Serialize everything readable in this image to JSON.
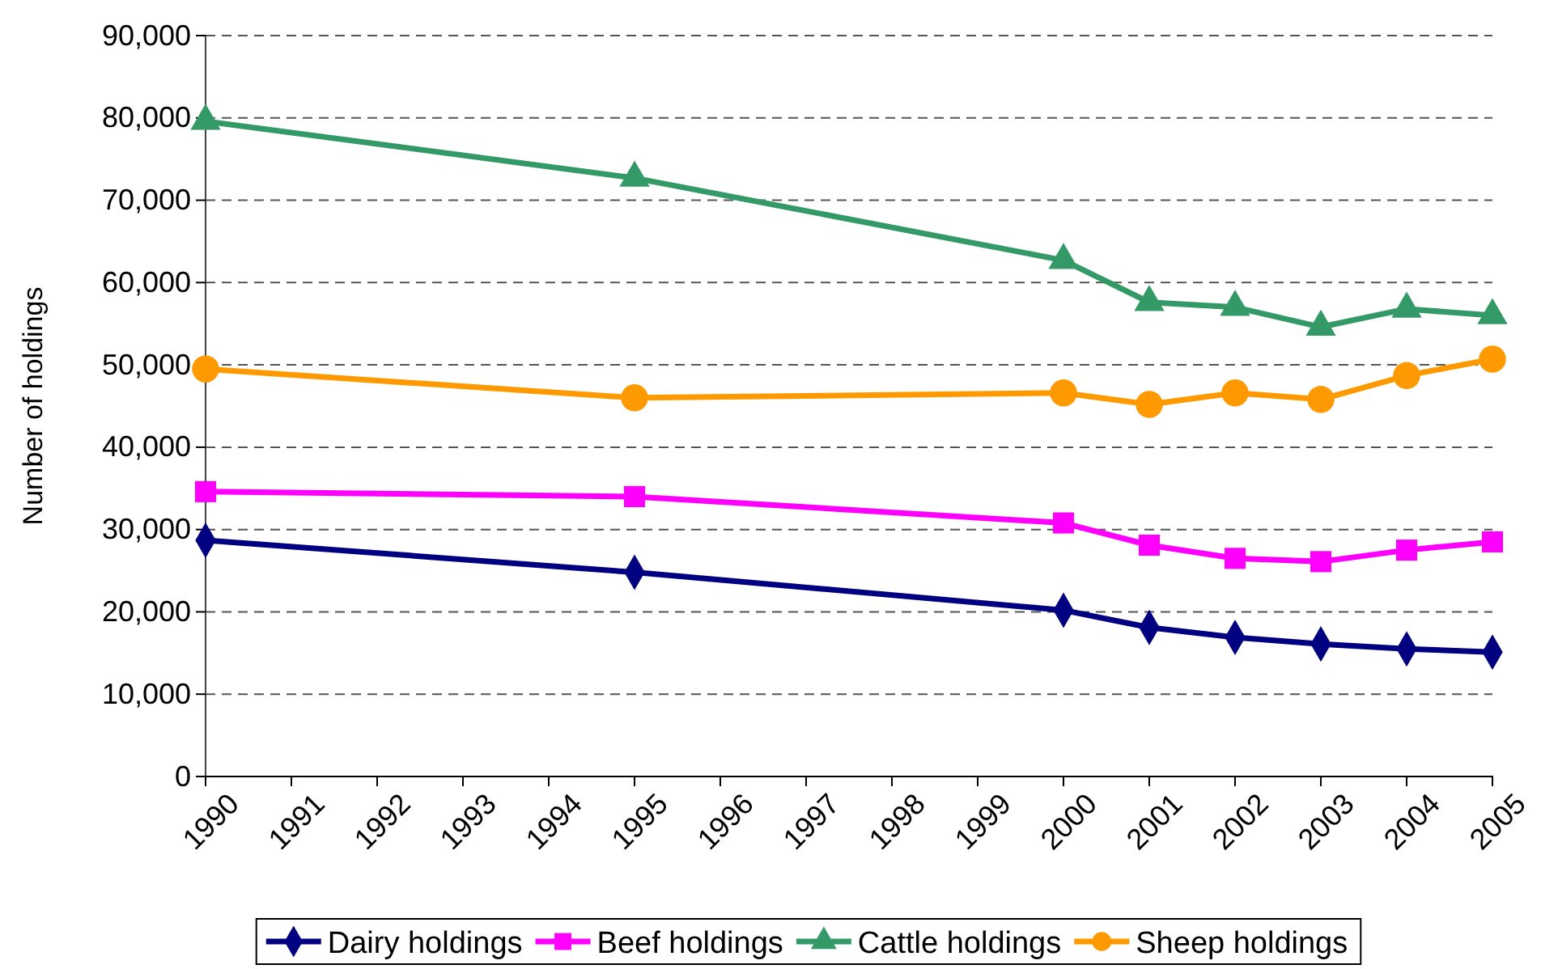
{
  "chart_data": {
    "type": "line",
    "ylabel": "Number of holdings",
    "x": [
      1990,
      1995,
      2000,
      2001,
      2002,
      2003,
      2004,
      2005
    ],
    "xlim": [
      1990,
      2005
    ],
    "xticks": [
      1990,
      1991,
      1992,
      1993,
      1994,
      1995,
      1996,
      1997,
      1998,
      1999,
      2000,
      2001,
      2002,
      2003,
      2004,
      2005
    ],
    "ylim": [
      0,
      90000
    ],
    "yticks": [
      {
        "value": 0,
        "label": "0"
      },
      {
        "value": 10000,
        "label": "10,000"
      },
      {
        "value": 20000,
        "label": "20,000"
      },
      {
        "value": 30000,
        "label": "30,000"
      },
      {
        "value": 40000,
        "label": "40,000"
      },
      {
        "value": 50000,
        "label": "50,000"
      },
      {
        "value": 60000,
        "label": "60,000"
      },
      {
        "value": 70000,
        "label": "70,000"
      },
      {
        "value": 80000,
        "label": "80,000"
      },
      {
        "value": 90000,
        "label": "90,000"
      }
    ],
    "grid": "y",
    "legend": "bottom",
    "line_style": "solid",
    "series": [
      {
        "name": "Dairy holdings",
        "color": "#000080",
        "marker": "diamond",
        "values": [
          28700,
          24800,
          20200,
          18100,
          16900,
          16100,
          15500,
          15100
        ]
      },
      {
        "name": "Beef holdings",
        "color": "#ff00ff",
        "marker": "square",
        "values": [
          34600,
          34000,
          30800,
          28100,
          26500,
          26100,
          27500,
          28500
        ]
      },
      {
        "name": "Cattle holdings",
        "color": "#339966",
        "marker": "triangle",
        "values": [
          79600,
          72700,
          62700,
          57600,
          57000,
          54600,
          56800,
          56000
        ]
      },
      {
        "name": "Sheep holdings",
        "color": "#ff9900",
        "marker": "circle",
        "values": [
          49500,
          46000,
          46600,
          45200,
          46600,
          45800,
          48700,
          50700
        ]
      }
    ]
  }
}
